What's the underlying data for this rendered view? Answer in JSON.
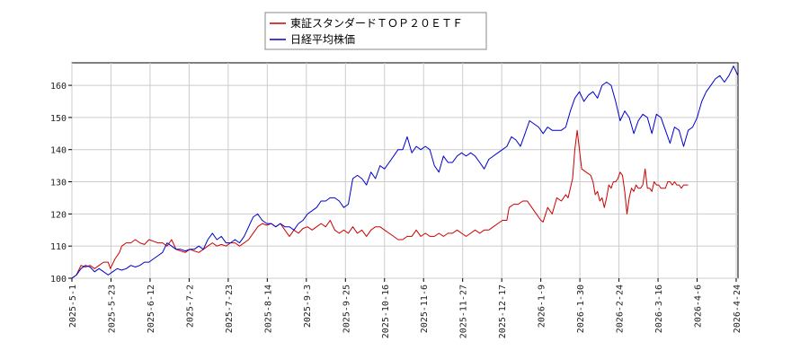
{
  "chart_data": {
    "type": "line",
    "title": "",
    "xlabel": "",
    "ylabel": "",
    "ylim": [
      100,
      167
    ],
    "yticks": [
      100,
      110,
      120,
      130,
      140,
      150,
      160
    ],
    "xtick_labels": [
      "2025-5-1",
      "2025-5-23",
      "2025-6-12",
      "2025-7-2",
      "2025-7-23",
      "2025-8-14",
      "2025-9-3",
      "2025-9-25",
      "2025-10-16",
      "2025-11-6",
      "2025-11-27",
      "2025-12-17",
      "2026-1-9",
      "2026-1-30",
      "2026-2-24",
      "2026-3-16",
      "2026-4-6",
      "2026-4-24"
    ],
    "grid": true,
    "legend_position": "top-center",
    "series": [
      {
        "name": "東証スタンダードＴＯＰ２０ＥＴＦ",
        "color": "#cc0000",
        "points": [
          [
            0,
            100
          ],
          [
            2,
            101
          ],
          [
            4,
            104
          ],
          [
            6,
            103.5
          ],
          [
            8,
            104
          ],
          [
            10,
            103
          ],
          [
            12,
            104
          ],
          [
            14,
            105
          ],
          [
            16,
            105
          ],
          [
            17,
            103
          ],
          [
            19,
            106
          ],
          [
            21,
            108
          ],
          [
            22,
            110
          ],
          [
            24,
            111
          ],
          [
            26,
            111
          ],
          [
            28,
            112
          ],
          [
            30,
            111
          ],
          [
            32,
            110.5
          ],
          [
            34,
            112
          ],
          [
            36,
            111.5
          ],
          [
            38,
            111
          ],
          [
            40,
            111
          ],
          [
            42,
            110
          ],
          [
            44,
            112
          ],
          [
            46,
            109
          ],
          [
            48,
            108.5
          ],
          [
            50,
            108
          ],
          [
            52,
            109
          ],
          [
            54,
            108.5
          ],
          [
            56,
            108
          ],
          [
            58,
            109
          ],
          [
            60,
            110
          ],
          [
            62,
            111
          ],
          [
            64,
            110
          ],
          [
            66,
            110.5
          ],
          [
            68,
            110
          ],
          [
            70,
            111
          ],
          [
            72,
            111
          ],
          [
            74,
            110
          ],
          [
            76,
            111
          ],
          [
            78,
            112
          ],
          [
            80,
            114
          ],
          [
            82,
            116
          ],
          [
            84,
            117
          ],
          [
            86,
            116.5
          ],
          [
            88,
            117
          ],
          [
            90,
            116
          ],
          [
            92,
            117
          ],
          [
            94,
            115
          ],
          [
            96,
            113
          ],
          [
            98,
            115
          ],
          [
            100,
            114
          ],
          [
            102,
            115.5
          ],
          [
            104,
            116
          ],
          [
            106,
            115
          ],
          [
            108,
            116
          ],
          [
            110,
            117
          ],
          [
            112,
            116
          ],
          [
            114,
            118
          ],
          [
            116,
            115
          ],
          [
            118,
            114
          ],
          [
            120,
            115
          ],
          [
            122,
            114
          ],
          [
            124,
            116
          ],
          [
            126,
            114
          ],
          [
            128,
            115
          ],
          [
            130,
            113
          ],
          [
            132,
            115
          ],
          [
            134,
            116
          ],
          [
            136,
            116
          ],
          [
            138,
            115
          ],
          [
            140,
            114
          ],
          [
            142,
            113
          ],
          [
            144,
            112
          ],
          [
            146,
            112
          ],
          [
            148,
            113
          ],
          [
            150,
            113
          ],
          [
            152,
            115
          ],
          [
            154,
            113
          ],
          [
            156,
            114
          ],
          [
            158,
            113
          ],
          [
            160,
            113
          ],
          [
            162,
            114
          ],
          [
            164,
            113
          ],
          [
            166,
            114
          ],
          [
            168,
            114
          ],
          [
            170,
            115
          ],
          [
            172,
            114
          ],
          [
            174,
            113
          ],
          [
            176,
            114
          ],
          [
            178,
            115
          ],
          [
            180,
            114
          ],
          [
            182,
            115
          ],
          [
            184,
            115
          ],
          [
            186,
            116
          ],
          [
            188,
            117
          ],
          [
            190,
            118
          ],
          [
            192,
            118
          ],
          [
            193,
            122
          ],
          [
            195,
            123
          ],
          [
            197,
            123
          ],
          [
            199,
            124
          ],
          [
            201,
            124
          ],
          [
            203,
            122
          ],
          [
            205,
            120
          ],
          [
            207,
            118
          ],
          [
            208,
            117.5
          ],
          [
            210,
            122
          ],
          [
            212,
            120
          ],
          [
            214,
            125
          ],
          [
            216,
            124
          ],
          [
            218,
            126
          ],
          [
            219,
            125
          ],
          [
            221,
            131
          ],
          [
            222,
            140
          ],
          [
            223,
            146
          ],
          [
            224,
            140
          ],
          [
            225,
            134
          ],
          [
            227,
            133
          ],
          [
            229,
            132
          ],
          [
            230,
            130
          ],
          [
            231,
            126
          ],
          [
            232,
            127
          ],
          [
            233,
            124
          ],
          [
            234,
            125
          ],
          [
            235,
            122
          ],
          [
            236,
            125
          ],
          [
            237,
            129
          ],
          [
            238,
            128
          ],
          [
            239,
            130
          ],
          [
            240,
            130
          ],
          [
            241,
            131
          ],
          [
            242,
            133
          ],
          [
            243,
            132
          ],
          [
            244,
            127
          ],
          [
            245,
            120
          ],
          [
            246,
            125
          ],
          [
            247,
            128
          ],
          [
            248,
            127
          ],
          [
            249,
            129
          ],
          [
            250,
            128
          ],
          [
            251,
            128
          ],
          [
            252,
            129
          ],
          [
            253,
            134
          ],
          [
            254,
            128
          ],
          [
            255,
            128
          ],
          [
            256,
            127
          ],
          [
            257,
            130
          ],
          [
            258,
            129
          ],
          [
            259,
            129
          ],
          [
            260,
            128
          ],
          [
            261,
            128
          ],
          [
            262,
            128
          ],
          [
            263,
            130
          ],
          [
            264,
            130
          ],
          [
            265,
            129
          ],
          [
            266,
            130
          ],
          [
            267,
            129
          ],
          [
            268,
            129
          ],
          [
            269,
            128
          ],
          [
            270,
            129
          ],
          [
            271,
            129
          ],
          [
            272,
            129
          ]
        ]
      },
      {
        "name": "日経平均株価",
        "color": "#0000cc",
        "points": [
          [
            0,
            100
          ],
          [
            2,
            101
          ],
          [
            4,
            103
          ],
          [
            6,
            104
          ],
          [
            8,
            103.5
          ],
          [
            10,
            102
          ],
          [
            12,
            103
          ],
          [
            14,
            102
          ],
          [
            16,
            101
          ],
          [
            18,
            102
          ],
          [
            20,
            103
          ],
          [
            22,
            102.5
          ],
          [
            24,
            103
          ],
          [
            26,
            104
          ],
          [
            28,
            103.5
          ],
          [
            30,
            104
          ],
          [
            32,
            105
          ],
          [
            34,
            105
          ],
          [
            36,
            106
          ],
          [
            38,
            107
          ],
          [
            40,
            108
          ],
          [
            42,
            111
          ],
          [
            44,
            110
          ],
          [
            46,
            109
          ],
          [
            48,
            109
          ],
          [
            50,
            108.5
          ],
          [
            52,
            109
          ],
          [
            54,
            109
          ],
          [
            56,
            110
          ],
          [
            58,
            109
          ],
          [
            60,
            112
          ],
          [
            62,
            114
          ],
          [
            64,
            112
          ],
          [
            66,
            113
          ],
          [
            68,
            111
          ],
          [
            70,
            111
          ],
          [
            72,
            112
          ],
          [
            74,
            111
          ],
          [
            76,
            113
          ],
          [
            78,
            116
          ],
          [
            80,
            119
          ],
          [
            82,
            120
          ],
          [
            84,
            118
          ],
          [
            86,
            117
          ],
          [
            88,
            117
          ],
          [
            90,
            116
          ],
          [
            92,
            117
          ],
          [
            94,
            116
          ],
          [
            96,
            116
          ],
          [
            98,
            115
          ],
          [
            100,
            117
          ],
          [
            102,
            118
          ],
          [
            104,
            120
          ],
          [
            106,
            121
          ],
          [
            108,
            122
          ],
          [
            110,
            124
          ],
          [
            112,
            124
          ],
          [
            114,
            125
          ],
          [
            116,
            125
          ],
          [
            118,
            124
          ],
          [
            120,
            122
          ],
          [
            122,
            123
          ],
          [
            124,
            131
          ],
          [
            126,
            132
          ],
          [
            128,
            131
          ],
          [
            130,
            129
          ],
          [
            132,
            133
          ],
          [
            134,
            131
          ],
          [
            136,
            135
          ],
          [
            138,
            134
          ],
          [
            140,
            136
          ],
          [
            142,
            138
          ],
          [
            144,
            140
          ],
          [
            146,
            140
          ],
          [
            148,
            144
          ],
          [
            150,
            139
          ],
          [
            152,
            141
          ],
          [
            154,
            140
          ],
          [
            156,
            141
          ],
          [
            158,
            140
          ],
          [
            160,
            135
          ],
          [
            162,
            133
          ],
          [
            164,
            138
          ],
          [
            166,
            136
          ],
          [
            168,
            136
          ],
          [
            170,
            138
          ],
          [
            172,
            139
          ],
          [
            174,
            138
          ],
          [
            176,
            139
          ],
          [
            178,
            138
          ],
          [
            180,
            136
          ],
          [
            182,
            134
          ],
          [
            184,
            137
          ],
          [
            186,
            138
          ],
          [
            188,
            139
          ],
          [
            190,
            140
          ],
          [
            192,
            141
          ],
          [
            194,
            144
          ],
          [
            196,
            143
          ],
          [
            198,
            141
          ],
          [
            200,
            145
          ],
          [
            202,
            149
          ],
          [
            204,
            148
          ],
          [
            206,
            147
          ],
          [
            208,
            145
          ],
          [
            210,
            147
          ],
          [
            212,
            146
          ],
          [
            214,
            146
          ],
          [
            216,
            146
          ],
          [
            218,
            147
          ],
          [
            220,
            152
          ],
          [
            222,
            156
          ],
          [
            224,
            158
          ],
          [
            226,
            155
          ],
          [
            228,
            157
          ],
          [
            230,
            158
          ],
          [
            232,
            156
          ],
          [
            234,
            160
          ],
          [
            236,
            161
          ],
          [
            238,
            160
          ],
          [
            240,
            155
          ],
          [
            242,
            149
          ],
          [
            244,
            152
          ],
          [
            246,
            150
          ],
          [
            248,
            145
          ],
          [
            250,
            149
          ],
          [
            252,
            151
          ],
          [
            254,
            150
          ],
          [
            256,
            145
          ],
          [
            258,
            151
          ],
          [
            260,
            150
          ],
          [
            262,
            146
          ],
          [
            264,
            142
          ],
          [
            266,
            147
          ],
          [
            268,
            146
          ],
          [
            270,
            141
          ],
          [
            272,
            146
          ],
          [
            274,
            147
          ],
          [
            276,
            150
          ],
          [
            278,
            155
          ],
          [
            280,
            158
          ],
          [
            282,
            160
          ],
          [
            284,
            162
          ],
          [
            286,
            163
          ],
          [
            288,
            161
          ],
          [
            290,
            163
          ],
          [
            292,
            166
          ],
          [
            294,
            163
          ]
        ]
      }
    ],
    "x_max": 294
  }
}
